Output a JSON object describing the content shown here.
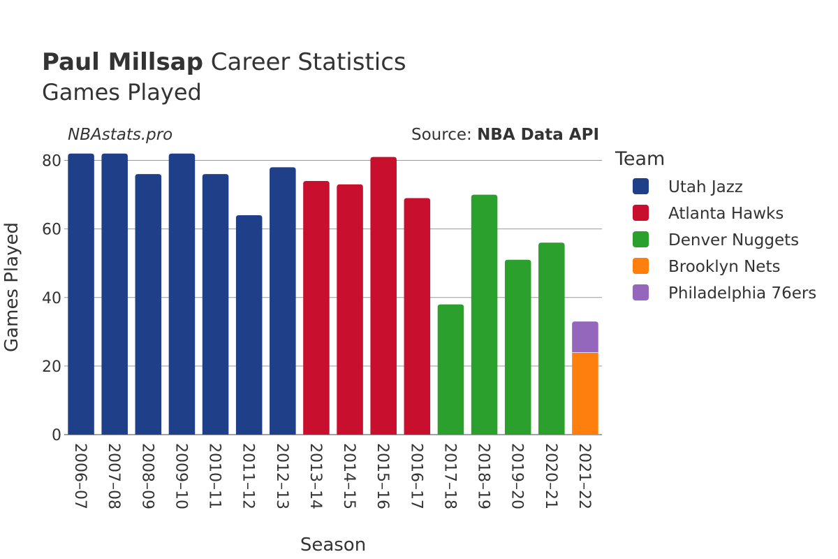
{
  "chart_data": {
    "type": "bar",
    "stacked": true,
    "title_bold": "Paul Millsap",
    "title_rest": "Career Statistics",
    "subtitle": "Games Played",
    "watermark": "NBAstats.pro",
    "source_prefix": "Source: ",
    "source_name": "NBA Data API",
    "xlabel": "Season",
    "ylabel": "Games Played",
    "ylim": [
      0,
      85
    ],
    "yticks": [
      0,
      20,
      40,
      60,
      80
    ],
    "grid": true,
    "legend_title": "Team",
    "legend_position": "right",
    "categories": [
      "2006–07",
      "2007–08",
      "2008–09",
      "2009–10",
      "2010–11",
      "2011–12",
      "2012–13",
      "2013–14",
      "2014–15",
      "2015–16",
      "2016–17",
      "2017–18",
      "2018–19",
      "2019–20",
      "2020–21",
      "2021–22"
    ],
    "series": [
      {
        "name": "Utah Jazz",
        "color": "#1f4088",
        "values": [
          82,
          82,
          76,
          82,
          76,
          64,
          78,
          0,
          0,
          0,
          0,
          0,
          0,
          0,
          0,
          0
        ]
      },
      {
        "name": "Atlanta Hawks",
        "color": "#c8102e",
        "values": [
          0,
          0,
          0,
          0,
          0,
          0,
          0,
          74,
          73,
          81,
          69,
          0,
          0,
          0,
          0,
          0
        ]
      },
      {
        "name": "Denver Nuggets",
        "color": "#2ca02c",
        "values": [
          0,
          0,
          0,
          0,
          0,
          0,
          0,
          0,
          0,
          0,
          0,
          38,
          70,
          51,
          56,
          0
        ]
      },
      {
        "name": "Brooklyn Nets",
        "color": "#ff7f0e",
        "values": [
          0,
          0,
          0,
          0,
          0,
          0,
          0,
          0,
          0,
          0,
          0,
          0,
          0,
          0,
          0,
          24
        ]
      },
      {
        "name": "Philadelphia 76ers",
        "color": "#9467bd",
        "values": [
          0,
          0,
          0,
          0,
          0,
          0,
          0,
          0,
          0,
          0,
          0,
          0,
          0,
          0,
          0,
          9
        ]
      }
    ]
  }
}
